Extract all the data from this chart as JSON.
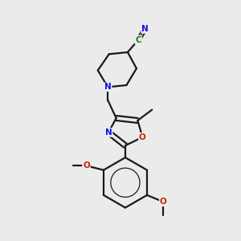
{
  "bg_color": "#ebebeb",
  "bond_color": "#1a1a1a",
  "N_color": "#1010ee",
  "O_color": "#cc2200",
  "C_color": "#1a7a1a",
  "figsize": [
    3.0,
    3.0
  ],
  "dpi": 100,
  "xlim": [
    0,
    10
  ],
  "ylim": [
    0,
    10
  ]
}
